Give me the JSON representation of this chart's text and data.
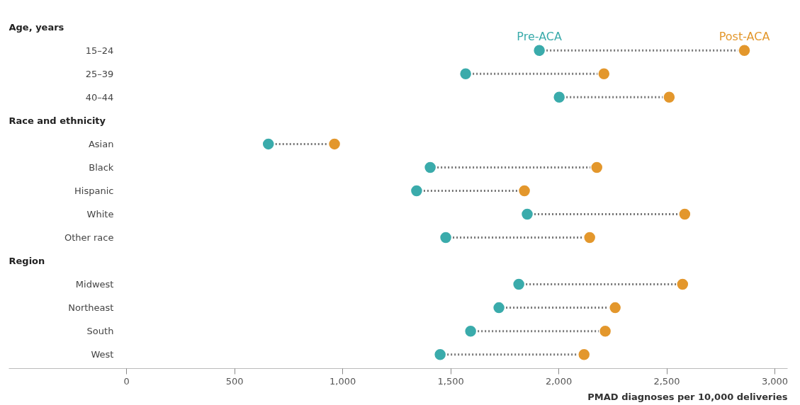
{
  "chart_data": {
    "type": "scatter",
    "xlabel": "PMAD diagnoses per 10,000 deliveries",
    "categories": [
      "Age, years",
      "15–24",
      "25–39",
      "40–44",
      "Race and ethnicity",
      "Asian",
      "Black",
      "Hispanic",
      "White",
      "Other race",
      "Region",
      "Midwest",
      "Northeast",
      "South",
      "West"
    ],
    "orientation": "horizontal",
    "marker": "circle",
    "grid": false,
    "xlim": [
      -545,
      3059
    ],
    "xticks": [
      0,
      500,
      {
        "value": 1000,
        "label": "1,000"
      },
      {
        "value": 1500,
        "label": "1,500"
      },
      {
        "value": 2000,
        "label": "2,000"
      },
      {
        "value": 2500,
        "label": "2,500"
      },
      {
        "value": 3000,
        "label": "3,000"
      }
    ],
    "series": [
      {
        "name": "Pre-ACA",
        "color": "#3aabab",
        "values": [
          null,
          1910,
          1569,
          2002,
          null,
          656,
          1405,
          1342,
          1854,
          1477,
          null,
          1815,
          1723,
          1592,
          1451
        ]
      },
      {
        "name": "Post-ACA",
        "color": "#e3972c",
        "values": [
          null,
          2859,
          2209,
          2511,
          null,
          962,
          2176,
          1841,
          2583,
          2143,
          null,
          2573,
          2261,
          2215,
          2117
        ]
      }
    ]
  }
}
